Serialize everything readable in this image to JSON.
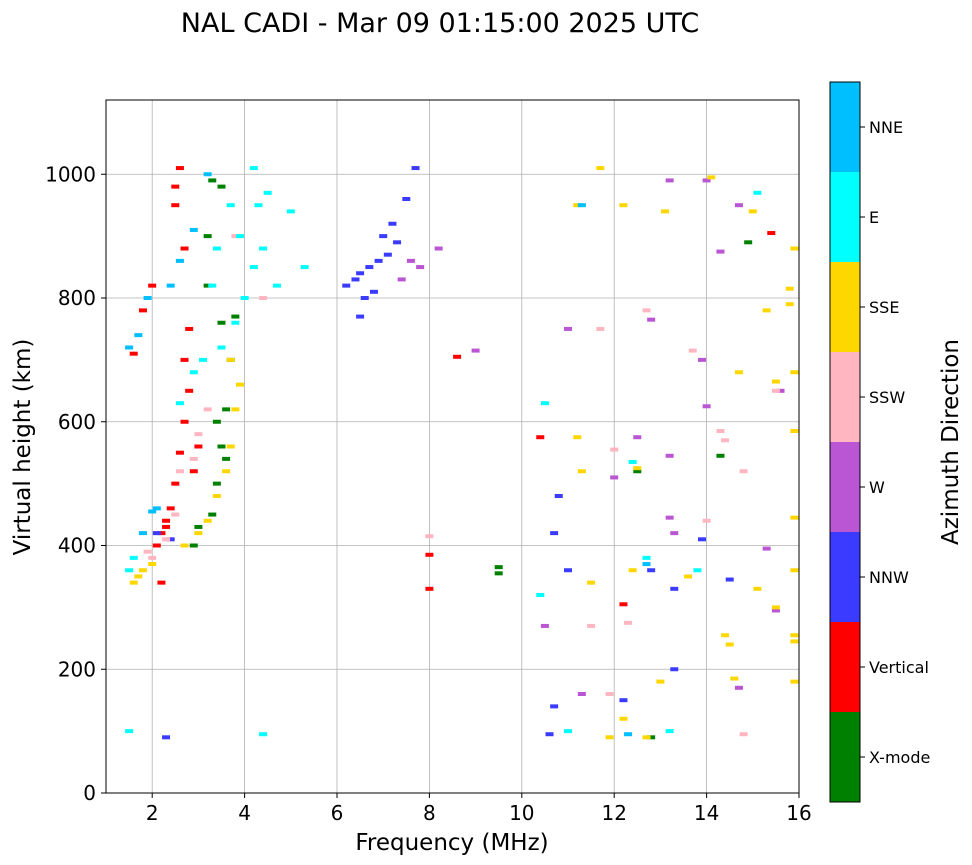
{
  "chart_data": {
    "type": "scatter",
    "title": "NAL CADI - Mar 09 01:15:00 2025 UTC",
    "xlabel": "Frequency (MHz)",
    "ylabel": "Virtual height (km)",
    "xlim": [
      1,
      16
    ],
    "ylim": [
      0,
      1120
    ],
    "xticks": [
      2,
      4,
      6,
      8,
      10,
      12,
      14,
      16
    ],
    "yticks": [
      0,
      200,
      400,
      600,
      800,
      1000
    ],
    "xtick_labels": [
      "2",
      "4",
      "6",
      "8",
      "10",
      "12",
      "14",
      "16"
    ],
    "ytick_labels": [
      "0",
      "200",
      "400",
      "600",
      "800",
      "1000"
    ],
    "grid": true,
    "colorbar": {
      "title": "Azimuth Direction",
      "categories": [
        {
          "name": "X-mode",
          "color": "#008000"
        },
        {
          "name": "Vertical",
          "color": "#ff0000"
        },
        {
          "name": "NNW",
          "color": "#3b3bff"
        },
        {
          "name": "W",
          "color": "#ba55d3"
        },
        {
          "name": "SSW",
          "color": "#ffb6c1"
        },
        {
          "name": "SSE",
          "color": "#ffd700"
        },
        {
          "name": "E",
          "color": "#00ffff"
        },
        {
          "name": "NNE",
          "color": "#00bfff"
        }
      ]
    },
    "series": [
      {
        "name": "X-mode",
        "points": [
          [
            3.3,
            450
          ],
          [
            3.4,
            500
          ],
          [
            3.5,
            560
          ],
          [
            3.6,
            620
          ],
          [
            3.7,
            700
          ],
          [
            3.5,
            760
          ],
          [
            3.2,
            820
          ],
          [
            3.2,
            900
          ],
          [
            3.3,
            990
          ],
          [
            3.5,
            980
          ],
          [
            3.0,
            430
          ],
          [
            2.9,
            400
          ],
          [
            3.6,
            540
          ],
          [
            3.4,
            600
          ],
          [
            3.8,
            770
          ],
          [
            9.5,
            365
          ],
          [
            9.5,
            355
          ],
          [
            12.8,
            90
          ],
          [
            12.5,
            520
          ],
          [
            14.3,
            545
          ],
          [
            14.9,
            890
          ]
        ]
      },
      {
        "name": "Vertical",
        "points": [
          [
            1.6,
            710
          ],
          [
            1.8,
            780
          ],
          [
            2.0,
            820
          ],
          [
            2.1,
            400
          ],
          [
            2.2,
            420
          ],
          [
            2.3,
            430
          ],
          [
            2.4,
            460
          ],
          [
            2.5,
            500
          ],
          [
            2.6,
            550
          ],
          [
            2.7,
            600
          ],
          [
            2.8,
            650
          ],
          [
            2.7,
            700
          ],
          [
            2.8,
            750
          ],
          [
            2.5,
            950
          ],
          [
            2.6,
            1010
          ],
          [
            2.5,
            980
          ],
          [
            2.7,
            880
          ],
          [
            2.3,
            440
          ],
          [
            2.2,
            340
          ],
          [
            8.0,
            385
          ],
          [
            8.0,
            330
          ],
          [
            8.6,
            705
          ],
          [
            10.4,
            575
          ],
          [
            12.2,
            305
          ],
          [
            15.4,
            905
          ],
          [
            2.9,
            520
          ],
          [
            3.0,
            560
          ]
        ]
      },
      {
        "name": "NNW",
        "points": [
          [
            6.2,
            820
          ],
          [
            6.4,
            830
          ],
          [
            6.5,
            840
          ],
          [
            6.7,
            850
          ],
          [
            6.9,
            860
          ],
          [
            7.1,
            870
          ],
          [
            7.3,
            890
          ],
          [
            6.6,
            800
          ],
          [
            6.8,
            810
          ],
          [
            7.0,
            900
          ],
          [
            7.2,
            920
          ],
          [
            7.5,
            960
          ],
          [
            7.7,
            1010
          ],
          [
            6.5,
            770
          ],
          [
            2.3,
            90
          ],
          [
            2.1,
            420
          ],
          [
            2.4,
            410
          ],
          [
            10.7,
            420
          ],
          [
            10.8,
            480
          ],
          [
            11.0,
            360
          ],
          [
            12.2,
            150
          ],
          [
            12.8,
            360
          ],
          [
            13.3,
            330
          ],
          [
            13.9,
            410
          ],
          [
            14.5,
            345
          ],
          [
            13.3,
            200
          ],
          [
            10.7,
            140
          ],
          [
            10.6,
            95
          ]
        ]
      },
      {
        "name": "W",
        "points": [
          [
            7.6,
            860
          ],
          [
            7.8,
            850
          ],
          [
            8.2,
            880
          ],
          [
            9.0,
            715
          ],
          [
            7.4,
            830
          ],
          [
            12.5,
            575
          ],
          [
            12.8,
            765
          ],
          [
            13.2,
            990
          ],
          [
            13.9,
            700
          ],
          [
            14.0,
            625
          ],
          [
            14.0,
            990
          ],
          [
            14.3,
            875
          ],
          [
            14.7,
            950
          ],
          [
            15.3,
            395
          ],
          [
            15.5,
            295
          ],
          [
            15.6,
            650
          ],
          [
            13.2,
            545
          ],
          [
            13.2,
            445
          ],
          [
            13.3,
            420
          ],
          [
            10.5,
            270
          ],
          [
            11.3,
            160
          ],
          [
            11.0,
            750
          ],
          [
            12.0,
            510
          ],
          [
            14.7,
            170
          ]
        ]
      },
      {
        "name": "SSW",
        "points": [
          [
            1.9,
            390
          ],
          [
            2.0,
            380
          ],
          [
            2.3,
            410
          ],
          [
            2.5,
            450
          ],
          [
            2.6,
            520
          ],
          [
            2.9,
            540
          ],
          [
            3.0,
            580
          ],
          [
            3.2,
            620
          ],
          [
            3.8,
            900
          ],
          [
            4.4,
            800
          ],
          [
            8.0,
            415
          ],
          [
            11.5,
            270
          ],
          [
            11.7,
            750
          ],
          [
            12.0,
            555
          ],
          [
            12.7,
            780
          ],
          [
            13.7,
            715
          ],
          [
            14.3,
            585
          ],
          [
            14.4,
            570
          ],
          [
            14.8,
            520
          ],
          [
            15.5,
            650
          ],
          [
            14.8,
            95
          ],
          [
            12.3,
            275
          ],
          [
            11.9,
            160
          ],
          [
            14.0,
            440
          ]
        ]
      },
      {
        "name": "SSE",
        "points": [
          [
            1.6,
            340
          ],
          [
            1.7,
            350
          ],
          [
            1.8,
            360
          ],
          [
            2.0,
            370
          ],
          [
            2.7,
            400
          ],
          [
            3.0,
            420
          ],
          [
            3.2,
            440
          ],
          [
            3.4,
            480
          ],
          [
            3.6,
            520
          ],
          [
            3.7,
            560
          ],
          [
            3.8,
            620
          ],
          [
            3.9,
            660
          ],
          [
            3.7,
            700
          ],
          [
            11.2,
            575
          ],
          [
            11.3,
            520
          ],
          [
            11.7,
            1010
          ],
          [
            12.2,
            950
          ],
          [
            12.4,
            360
          ],
          [
            12.5,
            525
          ],
          [
            13.1,
            940
          ],
          [
            13.6,
            350
          ],
          [
            14.1,
            995
          ],
          [
            14.4,
            255
          ],
          [
            14.5,
            240
          ],
          [
            14.6,
            185
          ],
          [
            14.7,
            680
          ],
          [
            15.0,
            940
          ],
          [
            15.1,
            330
          ],
          [
            15.3,
            780
          ],
          [
            15.5,
            300
          ],
          [
            15.5,
            665
          ],
          [
            15.8,
            815
          ],
          [
            15.8,
            790
          ],
          [
            15.9,
            880
          ],
          [
            15.9,
            680
          ],
          [
            15.9,
            585
          ],
          [
            15.9,
            445
          ],
          [
            15.9,
            360
          ],
          [
            15.9,
            255
          ],
          [
            15.9,
            245
          ],
          [
            15.9,
            180
          ],
          [
            12.7,
            90
          ],
          [
            13.0,
            180
          ],
          [
            12.2,
            120
          ],
          [
            11.9,
            90
          ],
          [
            11.5,
            340
          ],
          [
            11.2,
            950
          ]
        ]
      },
      {
        "name": "E",
        "points": [
          [
            1.5,
            360
          ],
          [
            1.6,
            380
          ],
          [
            2.6,
            630
          ],
          [
            2.9,
            680
          ],
          [
            3.1,
            700
          ],
          [
            3.5,
            720
          ],
          [
            3.8,
            760
          ],
          [
            4.0,
            800
          ],
          [
            4.2,
            850
          ],
          [
            4.4,
            880
          ],
          [
            3.9,
            900
          ],
          [
            4.3,
            950
          ],
          [
            4.5,
            970
          ],
          [
            5.0,
            940
          ],
          [
            5.3,
            850
          ],
          [
            4.7,
            820
          ],
          [
            4.2,
            1010
          ],
          [
            3.4,
            880
          ],
          [
            3.3,
            820
          ],
          [
            3.7,
            950
          ],
          [
            12.4,
            535
          ],
          [
            12.7,
            380
          ],
          [
            13.2,
            100
          ],
          [
            13.8,
            360
          ],
          [
            15.1,
            970
          ],
          [
            10.5,
            630
          ],
          [
            11.0,
            100
          ],
          [
            10.4,
            320
          ],
          [
            4.4,
            95
          ],
          [
            1.5,
            100
          ]
        ]
      },
      {
        "name": "NNE",
        "points": [
          [
            1.5,
            720
          ],
          [
            1.7,
            740
          ],
          [
            1.9,
            800
          ],
          [
            2.1,
            460
          ],
          [
            2.4,
            820
          ],
          [
            2.6,
            860
          ],
          [
            2.9,
            910
          ],
          [
            3.2,
            1000
          ],
          [
            2.0,
            455
          ],
          [
            1.8,
            420
          ],
          [
            11.3,
            950
          ],
          [
            12.3,
            95
          ],
          [
            12.7,
            370
          ]
        ]
      }
    ]
  }
}
